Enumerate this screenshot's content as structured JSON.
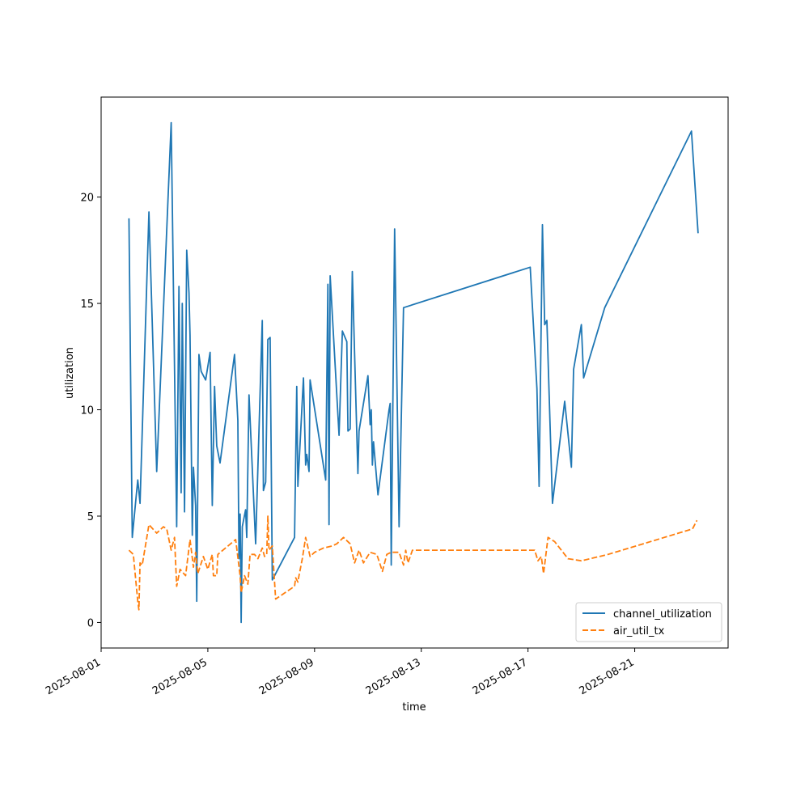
{
  "chart_data": {
    "type": "line",
    "title": "",
    "xlabel": "time",
    "ylabel": "utilization",
    "x_axis": {
      "type": "date",
      "range": [
        "2025-08-01",
        "2025-08-24T12:00"
      ],
      "ticks": [
        "2025-08-01",
        "2025-08-05",
        "2025-08-09",
        "2025-08-13",
        "2025-08-17",
        "2025-08-21"
      ]
    },
    "y_axis": {
      "range": [
        -1.2,
        24.7
      ],
      "ticks": [
        0,
        5,
        10,
        15,
        20
      ]
    },
    "grid": false,
    "legend_position": "lower-right",
    "series": [
      {
        "name": "channel_utilization",
        "color": "#1f77b4",
        "style": "solid",
        "points": [
          [
            "2025-08-02T01:00",
            19.0
          ],
          [
            "2025-08-02T04:00",
            4.0
          ],
          [
            "2025-08-02T08:00",
            6.2
          ],
          [
            "2025-08-02T09:00",
            6.7
          ],
          [
            "2025-08-02T11:00",
            5.6
          ],
          [
            "2025-08-02T19:00",
            19.3
          ],
          [
            "2025-08-03T02:00",
            7.1
          ],
          [
            "2025-08-03T15:00",
            23.5
          ],
          [
            "2025-08-03T20:00",
            4.5
          ],
          [
            "2025-08-03T22:00",
            15.8
          ],
          [
            "2025-08-04T00:00",
            6.1
          ],
          [
            "2025-08-04T01:00",
            15.0
          ],
          [
            "2025-08-04T03:00",
            5.2
          ],
          [
            "2025-08-04T05:00",
            17.5
          ],
          [
            "2025-08-04T07:00",
            15.5
          ],
          [
            "2025-08-04T08:00",
            13.5
          ],
          [
            "2025-08-04T10:00",
            4.1
          ],
          [
            "2025-08-04T11:00",
            7.3
          ],
          [
            "2025-08-04T13:00",
            5.5
          ],
          [
            "2025-08-04T14:00",
            1.0
          ],
          [
            "2025-08-04T16:00",
            12.6
          ],
          [
            "2025-08-04T18:00",
            11.8
          ],
          [
            "2025-08-04T22:00",
            11.4
          ],
          [
            "2025-08-05T02:00",
            12.7
          ],
          [
            "2025-08-05T04:00",
            5.5
          ],
          [
            "2025-08-05T06:00",
            11.1
          ],
          [
            "2025-08-05T08:00",
            8.3
          ],
          [
            "2025-08-05T11:00",
            7.5
          ],
          [
            "2025-08-06T00:00",
            12.6
          ],
          [
            "2025-08-06T03:00",
            9.5
          ],
          [
            "2025-08-06T04:00",
            3.0
          ],
          [
            "2025-08-06T05:00",
            5.1
          ],
          [
            "2025-08-06T06:00",
            0.0
          ],
          [
            "2025-08-06T07:00",
            4.5
          ],
          [
            "2025-08-06T10:00",
            5.3
          ],
          [
            "2025-08-06T11:00",
            4.0
          ],
          [
            "2025-08-06T13:00",
            10.7
          ],
          [
            "2025-08-06T19:00",
            3.7
          ],
          [
            "2025-08-07T00:00",
            12.6
          ],
          [
            "2025-08-07T01:00",
            14.2
          ],
          [
            "2025-08-07T02:00",
            6.2
          ],
          [
            "2025-08-07T04:00",
            6.6
          ],
          [
            "2025-08-07T06:00",
            13.3
          ],
          [
            "2025-08-07T08:00",
            13.4
          ],
          [
            "2025-08-07T10:00",
            2.0
          ],
          [
            "2025-08-08T06:00",
            4.0
          ],
          [
            "2025-08-08T08:00",
            11.1
          ],
          [
            "2025-08-08T09:00",
            6.4
          ],
          [
            "2025-08-08T14:00",
            11.5
          ],
          [
            "2025-08-08T16:00",
            7.4
          ],
          [
            "2025-08-08T17:00",
            7.9
          ],
          [
            "2025-08-08T19:00",
            7.1
          ],
          [
            "2025-08-08T20:00",
            11.4
          ],
          [
            "2025-08-09T10:00",
            6.7
          ],
          [
            "2025-08-09T12:00",
            15.9
          ],
          [
            "2025-08-09T13:00",
            4.6
          ],
          [
            "2025-08-09T14:00",
            16.3
          ],
          [
            "2025-08-09T22:00",
            8.8
          ],
          [
            "2025-08-10T01:00",
            13.7
          ],
          [
            "2025-08-10T05:00",
            13.2
          ],
          [
            "2025-08-10T06:00",
            9.0
          ],
          [
            "2025-08-10T08:00",
            9.1
          ],
          [
            "2025-08-10T10:00",
            16.5
          ],
          [
            "2025-08-10T15:00",
            7.0
          ],
          [
            "2025-08-10T16:00",
            9.0
          ],
          [
            "2025-08-11T00:00",
            11.6
          ],
          [
            "2025-08-11T02:00",
            9.3
          ],
          [
            "2025-08-11T03:00",
            10.0
          ],
          [
            "2025-08-11T04:00",
            7.4
          ],
          [
            "2025-08-11T05:00",
            8.5
          ],
          [
            "2025-08-11T09:00",
            6.0
          ],
          [
            "2025-08-11T19:00",
            10.0
          ],
          [
            "2025-08-11T20:00",
            10.3
          ],
          [
            "2025-08-11T21:00",
            2.7
          ],
          [
            "2025-08-12T00:00",
            18.5
          ],
          [
            "2025-08-12T04:00",
            4.5
          ],
          [
            "2025-08-12T08:00",
            14.8
          ],
          [
            "2025-08-17T02:00",
            16.7
          ],
          [
            "2025-08-17T08:00",
            11.0
          ],
          [
            "2025-08-17T10:00",
            6.4
          ],
          [
            "2025-08-17T13:00",
            18.7
          ],
          [
            "2025-08-17T15:00",
            14.0
          ],
          [
            "2025-08-17T17:00",
            14.2
          ],
          [
            "2025-08-17T22:00",
            5.6
          ],
          [
            "2025-08-18T09:00",
            10.4
          ],
          [
            "2025-08-18T15:00",
            7.3
          ],
          [
            "2025-08-18T17:00",
            11.9
          ],
          [
            "2025-08-19T00:00",
            14.0
          ],
          [
            "2025-08-19T02:00",
            11.5
          ],
          [
            "2025-08-19T21:00",
            14.8
          ],
          [
            "2025-08-23T03:00",
            23.1
          ],
          [
            "2025-08-23T09:00",
            18.3
          ]
        ]
      },
      {
        "name": "air_util_tx",
        "color": "#ff7f0e",
        "style": "dashed",
        "points": [
          [
            "2025-08-02T01:00",
            3.4
          ],
          [
            "2025-08-02T05:00",
            3.2
          ],
          [
            "2025-08-02T09:00",
            1.0
          ],
          [
            "2025-08-02T10:00",
            0.6
          ],
          [
            "2025-08-02T11:00",
            2.8
          ],
          [
            "2025-08-02T13:00",
            2.7
          ],
          [
            "2025-08-02T19:00",
            4.6
          ],
          [
            "2025-08-03T02:00",
            4.2
          ],
          [
            "2025-08-03T08:00",
            4.5
          ],
          [
            "2025-08-03T11:00",
            4.4
          ],
          [
            "2025-08-03T15:00",
            3.4
          ],
          [
            "2025-08-03T18:00",
            4.0
          ],
          [
            "2025-08-03T20:00",
            1.7
          ],
          [
            "2025-08-03T23:00",
            2.5
          ],
          [
            "2025-08-04T04:00",
            2.2
          ],
          [
            "2025-08-04T08:00",
            3.9
          ],
          [
            "2025-08-04T11:00",
            2.6
          ],
          [
            "2025-08-04T13:00",
            3.3
          ],
          [
            "2025-08-04T15:00",
            2.3
          ],
          [
            "2025-08-04T20:00",
            3.1
          ],
          [
            "2025-08-05T00:00",
            2.5
          ],
          [
            "2025-08-05T04:00",
            3.2
          ],
          [
            "2025-08-05T05:00",
            2.2
          ],
          [
            "2025-08-05T08:00",
            2.2
          ],
          [
            "2025-08-05T09:00",
            3.2
          ],
          [
            "2025-08-06T01:00",
            3.9
          ],
          [
            "2025-08-06T05:00",
            2.2
          ],
          [
            "2025-08-06T06:00",
            1.4
          ],
          [
            "2025-08-06T09:00",
            2.2
          ],
          [
            "2025-08-06T12:00",
            1.8
          ],
          [
            "2025-08-06T14:00",
            3.2
          ],
          [
            "2025-08-06T18:00",
            3.2
          ],
          [
            "2025-08-06T21:00",
            3.0
          ],
          [
            "2025-08-07T01:00",
            3.5
          ],
          [
            "2025-08-07T03:00",
            3.1
          ],
          [
            "2025-08-07T05:00",
            3.2
          ],
          [
            "2025-08-07T06:00",
            5.0
          ],
          [
            "2025-08-07T07:00",
            3.4
          ],
          [
            "2025-08-07T10:00",
            3.6
          ],
          [
            "2025-08-07T13:00",
            1.1
          ],
          [
            "2025-08-08T06:00",
            1.7
          ],
          [
            "2025-08-08T07:00",
            2.1
          ],
          [
            "2025-08-08T09:00",
            1.9
          ],
          [
            "2025-08-08T10:00",
            2.2
          ],
          [
            "2025-08-08T13:00",
            3.0
          ],
          [
            "2025-08-08T16:00",
            4.0
          ],
          [
            "2025-08-08T20:00",
            3.1
          ],
          [
            "2025-08-09T00:00",
            3.3
          ],
          [
            "2025-08-09T08:00",
            3.5
          ],
          [
            "2025-08-09T16:00",
            3.6
          ],
          [
            "2025-08-09T20:00",
            3.7
          ],
          [
            "2025-08-10T02:00",
            4.0
          ],
          [
            "2025-08-10T08:00",
            3.7
          ],
          [
            "2025-08-10T12:00",
            2.8
          ],
          [
            "2025-08-10T16:00",
            3.4
          ],
          [
            "2025-08-10T20:00",
            2.8
          ],
          [
            "2025-08-11T02:00",
            3.3
          ],
          [
            "2025-08-11T08:00",
            3.2
          ],
          [
            "2025-08-11T13:00",
            2.4
          ],
          [
            "2025-08-11T17:00",
            3.2
          ],
          [
            "2025-08-11T21:00",
            3.3
          ],
          [
            "2025-08-12T04:00",
            3.3
          ],
          [
            "2025-08-12T08:00",
            2.7
          ],
          [
            "2025-08-12T10:00",
            3.4
          ],
          [
            "2025-08-12T12:00",
            2.8
          ],
          [
            "2025-08-12T16:00",
            3.4
          ],
          [
            "2025-08-17T06:00",
            3.4
          ],
          [
            "2025-08-17T09:00",
            2.9
          ],
          [
            "2025-08-17T12:00",
            3.1
          ],
          [
            "2025-08-17T14:00",
            2.3
          ],
          [
            "2025-08-17T18:00",
            4.0
          ],
          [
            "2025-08-18T00:00",
            3.8
          ],
          [
            "2025-08-18T12:00",
            3.0
          ],
          [
            "2025-08-19T00:00",
            2.9
          ],
          [
            "2025-08-20T00:00",
            3.2
          ],
          [
            "2025-08-23T04:00",
            4.4
          ],
          [
            "2025-08-23T08:00",
            4.8
          ]
        ]
      }
    ]
  }
}
